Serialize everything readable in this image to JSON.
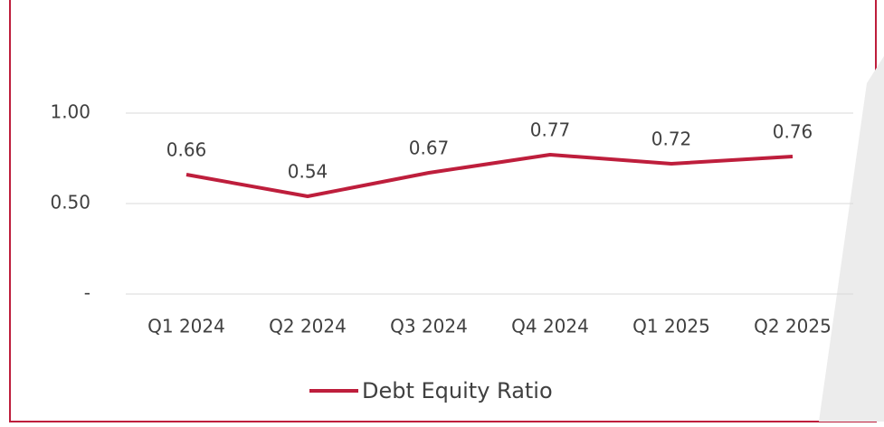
{
  "chart_data": {
    "type": "line",
    "categories": [
      "Q1 2024",
      "Q2 2024",
      "Q3 2024",
      "Q4 2024",
      "Q1 2025",
      "Q2 2025"
    ],
    "series": [
      {
        "name": "Debt Equity Ratio",
        "color": "#be1e3c",
        "values": [
          0.66,
          0.54,
          0.67,
          0.77,
          0.72,
          0.76
        ]
      }
    ],
    "ylim": [
      0,
      1
    ],
    "yticks": [
      {
        "value": 0,
        "label": "-"
      },
      {
        "value": 0.5,
        "label": "0.50"
      },
      {
        "value": 1,
        "label": "1.00"
      }
    ],
    "grid": true,
    "legend": "bottom"
  }
}
